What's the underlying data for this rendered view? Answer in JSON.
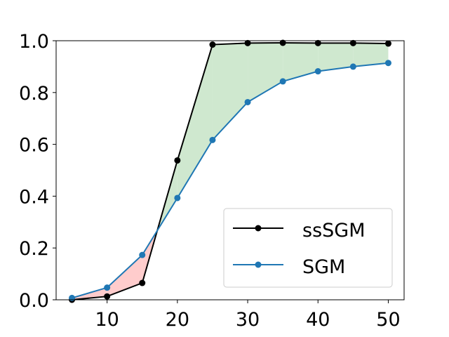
{
  "chart_data": {
    "type": "line",
    "title": "",
    "xlabel": "",
    "ylabel": "",
    "x": [
      5,
      10,
      15,
      20,
      25,
      30,
      35,
      40,
      45,
      50
    ],
    "xlim": [
      2.75,
      52.25
    ],
    "ylim": [
      0.0,
      1.0
    ],
    "xticks": [
      10,
      20,
      30,
      40,
      50
    ],
    "yticks": [
      0.0,
      0.2,
      0.4,
      0.6,
      0.8,
      1.0
    ],
    "xtick_labels": [
      "10",
      "20",
      "30",
      "40",
      "50"
    ],
    "ytick_labels": [
      "0.0",
      "0.2",
      "0.4",
      "0.6",
      "0.8",
      "1.0"
    ],
    "grid": false,
    "legend_position": "lower-right",
    "series": [
      {
        "name": "ssSGM",
        "color": "#000000",
        "values": [
          0.0,
          0.013,
          0.065,
          0.538,
          0.985,
          0.991,
          0.992,
          0.991,
          0.991,
          0.989
        ]
      },
      {
        "name": "SGM",
        "color": "#1f77b4",
        "values": [
          0.007,
          0.047,
          0.173,
          0.393,
          0.617,
          0.763,
          0.843,
          0.882,
          0.9,
          0.914
        ]
      }
    ],
    "fill_between": {
      "colors": {
        "series1_above": "#cfe8cf",
        "series2_above": "#ffcccc"
      }
    }
  }
}
